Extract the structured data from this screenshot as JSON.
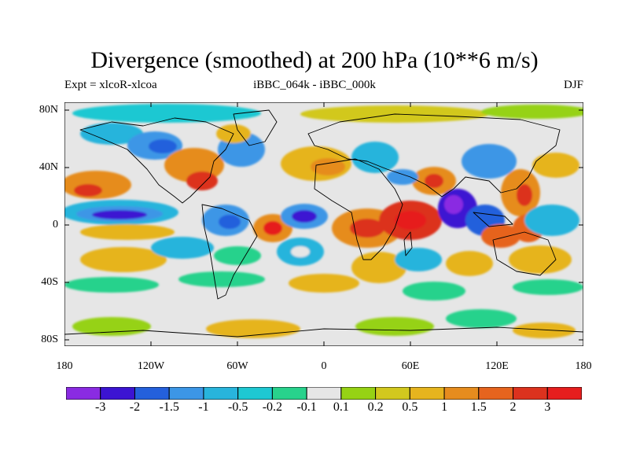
{
  "title": "Divergence (smoothed) at 200 hPa (10**6 m/s)",
  "subtitle_left": "Expt = xlcoR-xlcoa",
  "subtitle_center": "iBBC_064k - iBBC_000k",
  "subtitle_right": "DJF",
  "lat_labels": [
    "80N",
    "40N",
    "0",
    "40S",
    "80S"
  ],
  "lon_labels": [
    "180",
    "120W",
    "60W",
    "0",
    "60E",
    "120E",
    "180"
  ],
  "colorbar": {
    "labels": [
      "-3",
      "-2",
      "-1.5",
      "-1",
      "-0.5",
      "-0.2",
      "-0.1",
      "0.1",
      "0.2",
      "0.5",
      "1",
      "1.5",
      "2",
      "3"
    ],
    "colors": [
      "#8a2be2",
      "#3c14d2",
      "#2460dc",
      "#3c96e6",
      "#28b4dc",
      "#1ec8d2",
      "#28d28c",
      "#e6e6e6",
      "#96d214",
      "#d2c81e",
      "#e6b41e",
      "#e68c1e",
      "#e6641e",
      "#dc321e",
      "#e61e1e"
    ]
  }
}
